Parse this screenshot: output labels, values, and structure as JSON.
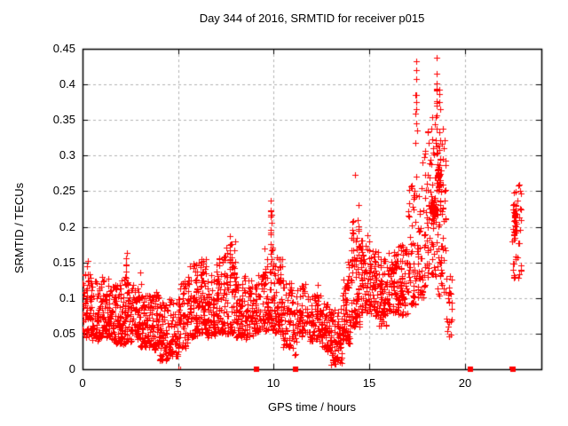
{
  "chart_data": {
    "type": "scatter",
    "title": "Day 344 of 2016, SRMTID for receiver p015",
    "xlabel": "GPS time / hours",
    "ylabel": "SRMTID / TECUs",
    "xlim": [
      0,
      24
    ],
    "ylim": [
      0,
      0.45
    ],
    "xticks": [
      0,
      5,
      10,
      15,
      20
    ],
    "xtick_labels": [
      "0",
      "5",
      "10",
      "15",
      "20"
    ],
    "yticks": [
      0,
      0.05,
      0.1,
      0.15,
      0.2,
      0.25,
      0.3,
      0.35,
      0.4,
      0.45
    ],
    "ytick_labels": [
      "0",
      "0.05",
      "0.1",
      "0.15",
      "0.2",
      "0.25",
      "0.3",
      "0.35",
      "0.4",
      "0.45"
    ],
    "grid": true,
    "grid_color": "#b3b3b3",
    "border_color": "#000000",
    "marker": "plus",
    "marker_color": "#ff0000",
    "series_name": "SRMTID",
    "description": "Dense scatter of ~2400 red plus markers; band 0.03-0.16 TECUs for hours 0-13 with dips near 4.5 and 13.4, rising activity 14-19 peaking 0.44 near hours 17.5-18.7, data gap 19.4-22.4, final cluster 0.12-0.26 near hour 22.7; red squares on the time axis mark zero/gap epochs",
    "bands": [
      {
        "x0": 0.0,
        "x1": 0.5,
        "ymin": 0.045,
        "ymax": 0.135,
        "n": 68,
        "p": 1.4
      },
      {
        "x0": 0.5,
        "x1": 1.0,
        "ymin": 0.04,
        "ymax": 0.125,
        "n": 68,
        "p": 1.4
      },
      {
        "x0": 1.0,
        "x1": 1.5,
        "ymin": 0.045,
        "ymax": 0.13,
        "n": 68,
        "p": 1.4
      },
      {
        "x0": 1.5,
        "x1": 2.0,
        "ymin": 0.035,
        "ymax": 0.12,
        "n": 68,
        "p": 1.4
      },
      {
        "x0": 2.0,
        "x1": 2.5,
        "ymin": 0.035,
        "ymax": 0.13,
        "n": 68,
        "p": 1.4
      },
      {
        "x0": 2.5,
        "x1": 3.0,
        "ymin": 0.04,
        "ymax": 0.12,
        "n": 68,
        "p": 1.4
      },
      {
        "x0": 3.0,
        "x1": 3.5,
        "ymin": 0.03,
        "ymax": 0.105,
        "n": 68,
        "p": 1.3
      },
      {
        "x0": 3.5,
        "x1": 4.0,
        "ymin": 0.025,
        "ymax": 0.11,
        "n": 68,
        "p": 1.3
      },
      {
        "x0": 4.0,
        "x1": 4.5,
        "ymin": 0.012,
        "ymax": 0.095,
        "n": 62,
        "p": 1.3
      },
      {
        "x0": 4.5,
        "x1": 5.0,
        "ymin": 0.018,
        "ymax": 0.1,
        "n": 62,
        "p": 1.3
      },
      {
        "x0": 5.0,
        "x1": 5.5,
        "ymin": 0.03,
        "ymax": 0.125,
        "n": 62,
        "p": 1.4
      },
      {
        "x0": 5.5,
        "x1": 6.0,
        "ymin": 0.045,
        "ymax": 0.15,
        "n": 66,
        "p": 1.5
      },
      {
        "x0": 6.0,
        "x1": 6.5,
        "ymin": 0.05,
        "ymax": 0.16,
        "n": 68,
        "p": 1.5
      },
      {
        "x0": 6.5,
        "x1": 7.0,
        "ymin": 0.045,
        "ymax": 0.135,
        "n": 68,
        "p": 1.4
      },
      {
        "x0": 7.0,
        "x1": 7.5,
        "ymin": 0.05,
        "ymax": 0.16,
        "n": 68,
        "p": 1.5
      },
      {
        "x0": 7.5,
        "x1": 8.0,
        "ymin": 0.05,
        "ymax": 0.185,
        "n": 68,
        "p": 1.6
      },
      {
        "x0": 8.0,
        "x1": 8.5,
        "ymin": 0.045,
        "ymax": 0.135,
        "n": 68,
        "p": 1.4
      },
      {
        "x0": 8.5,
        "x1": 9.1,
        "ymin": 0.04,
        "ymax": 0.125,
        "n": 70,
        "p": 1.4
      },
      {
        "x0": 9.1,
        "x1": 9.6,
        "ymin": 0.05,
        "ymax": 0.14,
        "n": 48,
        "p": 1.4
      },
      {
        "x0": 9.6,
        "x1": 10.0,
        "ymin": 0.055,
        "ymax": 0.175,
        "n": 55,
        "p": 1.7
      },
      {
        "x0": 10.0,
        "x1": 10.5,
        "ymin": 0.05,
        "ymax": 0.16,
        "n": 62,
        "p": 1.5
      },
      {
        "x0": 10.5,
        "x1": 11.0,
        "ymin": 0.03,
        "ymax": 0.125,
        "n": 58,
        "p": 1.4
      },
      {
        "x0": 11.0,
        "x1": 11.2,
        "ymin": 0.02,
        "ymax": 0.09,
        "n": 14,
        "p": 1.3
      },
      {
        "x0": 11.2,
        "x1": 11.8,
        "ymin": 0.045,
        "ymax": 0.12,
        "n": 55,
        "p": 1.4
      },
      {
        "x0": 11.8,
        "x1": 12.5,
        "ymin": 0.04,
        "ymax": 0.105,
        "n": 75,
        "p": 1.4
      },
      {
        "x0": 12.5,
        "x1": 13.0,
        "ymin": 0.025,
        "ymax": 0.095,
        "n": 64,
        "p": 1.3
      },
      {
        "x0": 13.0,
        "x1": 13.6,
        "ymin": 0.006,
        "ymax": 0.085,
        "n": 70,
        "p": 1.3
      },
      {
        "x0": 13.6,
        "x1": 14.0,
        "ymin": 0.035,
        "ymax": 0.13,
        "n": 62,
        "p": 1.5
      },
      {
        "x0": 14.0,
        "x1": 14.5,
        "ymin": 0.06,
        "ymax": 0.21,
        "n": 66,
        "p": 1.8
      },
      {
        "x0": 14.5,
        "x1": 15.0,
        "ymin": 0.08,
        "ymax": 0.195,
        "n": 66,
        "p": 1.3
      },
      {
        "x0": 15.0,
        "x1": 15.5,
        "ymin": 0.075,
        "ymax": 0.17,
        "n": 64,
        "p": 1.3
      },
      {
        "x0": 15.5,
        "x1": 16.0,
        "ymin": 0.06,
        "ymax": 0.155,
        "n": 64,
        "p": 1.3
      },
      {
        "x0": 16.0,
        "x1": 16.5,
        "ymin": 0.08,
        "ymax": 0.165,
        "n": 64,
        "p": 1.3
      },
      {
        "x0": 16.5,
        "x1": 17.0,
        "ymin": 0.075,
        "ymax": 0.175,
        "n": 64,
        "p": 1.3
      },
      {
        "x0": 17.0,
        "x1": 17.5,
        "ymin": 0.09,
        "ymax": 0.26,
        "n": 58,
        "p": 1.6
      },
      {
        "x0": 17.5,
        "x1": 18.0,
        "ymin": 0.1,
        "ymax": 0.31,
        "n": 58,
        "p": 1.5
      },
      {
        "x0": 18.0,
        "x1": 18.5,
        "ymin": 0.13,
        "ymax": 0.36,
        "n": 62,
        "p": 1.5
      },
      {
        "x0": 18.5,
        "x1": 19.0,
        "ymin": 0.1,
        "ymax": 0.34,
        "n": 66,
        "p": 1.2
      },
      {
        "x0": 19.0,
        "x1": 19.35,
        "ymin": 0.045,
        "ymax": 0.135,
        "n": 22,
        "p": 1.3
      },
      {
        "x0": 22.45,
        "x1": 22.95,
        "ymin": 0.125,
        "ymax": 0.262,
        "n": 44,
        "p": 1.0
      }
    ],
    "clusters": [
      {
        "x": 18.35,
        "dx": 0.22,
        "y": 0.225,
        "dy": 0.022,
        "n": 55
      },
      {
        "x": 18.62,
        "dx": 0.12,
        "y": 0.27,
        "dy": 0.03,
        "n": 25
      },
      {
        "x": 22.62,
        "dx": 0.1,
        "y": 0.21,
        "dy": 0.035,
        "n": 20
      }
    ],
    "spikes": [
      {
        "x": 0.27,
        "ylo": 0.12,
        "yhi": 0.157,
        "n": 5
      },
      {
        "x": 2.28,
        "ylo": 0.115,
        "yhi": 0.165,
        "n": 7
      },
      {
        "x": 3.05,
        "ylo": 0.1,
        "yhi": 0.14,
        "n": 4
      },
      {
        "x": 6.2,
        "ylo": 0.115,
        "yhi": 0.155,
        "n": 5
      },
      {
        "x": 7.15,
        "ylo": 0.12,
        "yhi": 0.158,
        "n": 5
      },
      {
        "x": 7.72,
        "ylo": 0.13,
        "yhi": 0.19,
        "n": 8
      },
      {
        "x": 8.0,
        "ylo": 0.11,
        "yhi": 0.15,
        "n": 4
      },
      {
        "x": 9.55,
        "ylo": 0.12,
        "yhi": 0.175,
        "n": 5
      },
      {
        "x": 9.85,
        "ylo": 0.145,
        "yhi": 0.265,
        "n": 16
      },
      {
        "x": 10.32,
        "ylo": 0.115,
        "yhi": 0.16,
        "n": 6
      },
      {
        "x": 13.9,
        "ylo": 0.11,
        "yhi": 0.168,
        "n": 6
      },
      {
        "x": 14.12,
        "ylo": 0.14,
        "yhi": 0.225,
        "n": 9
      },
      {
        "x": 14.45,
        "ylo": 0.16,
        "yhi": 0.232,
        "n": 7
      },
      {
        "x": 17.45,
        "ylo": 0.25,
        "yhi": 0.437,
        "n": 13
      },
      {
        "x": 18.52,
        "ylo": 0.3,
        "yhi": 0.44,
        "n": 15
      },
      {
        "x": 18.68,
        "ylo": 0.28,
        "yhi": 0.405,
        "n": 9
      }
    ],
    "singles": [
      [
        14.25,
        0.273
      ],
      [
        11.5,
        0.117
      ],
      [
        12.3,
        0.118
      ],
      [
        22.5,
        0.148
      ],
      [
        22.55,
        0.13
      ],
      [
        19.15,
        0.046
      ]
    ],
    "zero_markers": {
      "squares": [
        9.1,
        11.15,
        20.3,
        22.5
      ],
      "plus_marks": [
        5.03,
        5.1,
        22.35
      ]
    }
  }
}
